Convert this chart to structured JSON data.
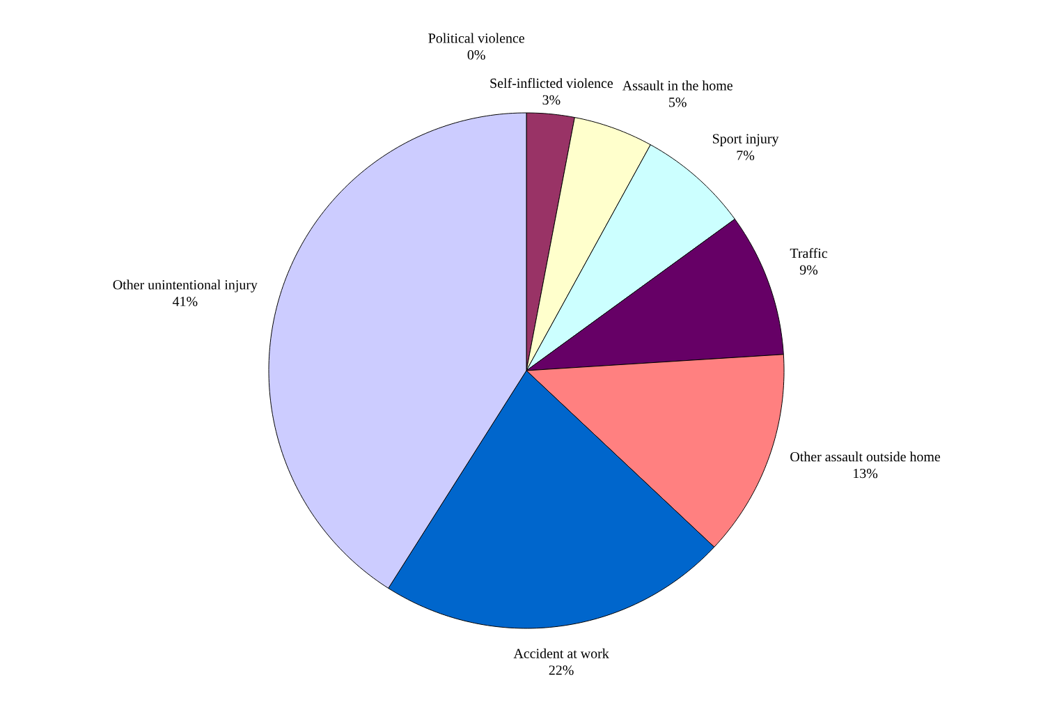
{
  "chart_data": {
    "type": "pie",
    "categories": [
      "Political violence",
      "Self-inflicted violence",
      "Assault in the home",
      "Sport injury",
      "Traffic",
      "Other assault outside home",
      "Accident at work",
      "Other unintentional injury"
    ],
    "values": [
      0,
      3,
      5,
      7,
      9,
      13,
      22,
      41
    ],
    "value_labels": [
      "0%",
      "3%",
      "5%",
      "7%",
      "9%",
      "13%",
      "22%",
      "41%"
    ],
    "colors": [
      "#9999ff",
      "#993366",
      "#ffffcc",
      "#ccffff",
      "#660066",
      "#ff8080",
      "#0066cc",
      "#ccccff"
    ],
    "legend": false
  }
}
